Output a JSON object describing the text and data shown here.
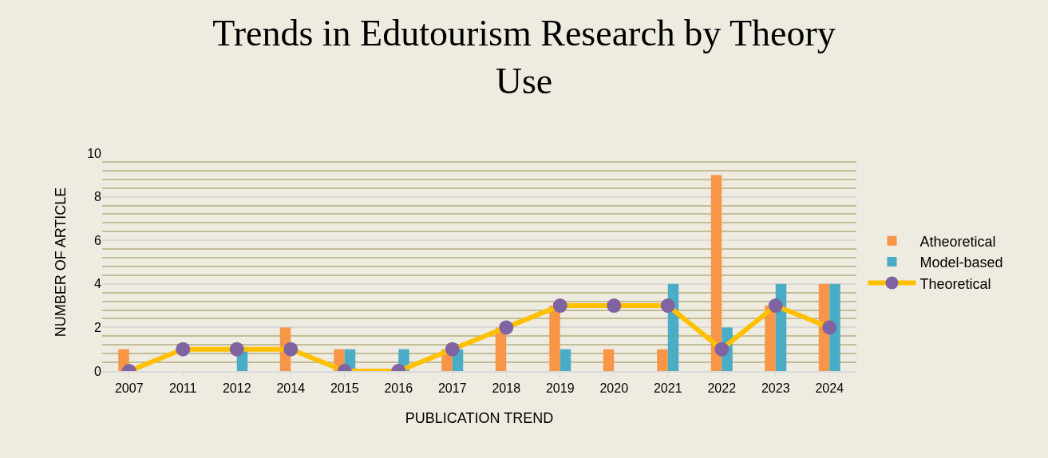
{
  "chart_data": {
    "type": "bar",
    "title": "Trends in Edutourism Research by Theory Use",
    "xlabel": "PUBLICATION TREND",
    "ylabel": "NUMBER OF ARTICLE",
    "categories": [
      "2007",
      "2011",
      "2012",
      "2014",
      "2015",
      "2016",
      "2017",
      "2018",
      "2019",
      "2020",
      "2021",
      "2022",
      "2023",
      "2024"
    ],
    "series": [
      {
        "name": "Atheoretical",
        "color": "#f79646",
        "values": [
          1,
          0,
          0,
          2,
          1,
          0,
          1,
          2,
          3,
          1,
          1,
          9,
          3,
          4
        ]
      },
      {
        "name": "Model-based",
        "color": "#4bacc6",
        "values": [
          0,
          0,
          1,
          0,
          1,
          1,
          1,
          0,
          1,
          0,
          4,
          2,
          4,
          4
        ]
      },
      {
        "name": "Theoretical",
        "type": "line",
        "color": "#ffc000",
        "colors": [
          "#8064a2",
          "#8064a2",
          "#8064a2",
          "#8064a2",
          "#8064a2",
          "#8064a2",
          "#8064a2",
          "#8064a2",
          "#8064a2",
          "#8064a2",
          "#8064a2",
          "#8064a2",
          "#8064a2",
          "#8064a2"
        ],
        "marker": "circle",
        "line_style": "solid",
        "values": [
          0,
          1,
          1,
          1,
          0,
          0,
          1,
          2,
          3,
          3,
          3,
          1,
          3,
          2
        ]
      }
    ],
    "ylim": [
      0,
      10
    ],
    "yticks": [
      0,
      {
        "value": 0.4,
        "label": null
      },
      {
        "value": 0.8,
        "label": null
      },
      {
        "value": 1.2,
        "label": null
      },
      {
        "value": 1.6,
        "label": null
      },
      2,
      {
        "value": 2.4,
        "label": null
      },
      {
        "value": 2.8,
        "label": null
      },
      {
        "value": 3.2,
        "label": null
      },
      {
        "value": 3.6,
        "label": null
      },
      4,
      {
        "value": 4.4,
        "label": null
      },
      {
        "value": 4.8,
        "label": null
      },
      {
        "value": 5.2,
        "label": null
      },
      {
        "value": 5.6,
        "label": null
      },
      6,
      {
        "value": 6.4,
        "label": null
      },
      {
        "value": 6.8,
        "label": null
      },
      {
        "value": 7.2,
        "label": null
      },
      {
        "value": 7.6,
        "label": null
      },
      8,
      {
        "value": 8.4,
        "label": null
      },
      {
        "value": 8.8,
        "label": null
      },
      {
        "value": 9.2,
        "label": null
      },
      {
        "value": 9.6,
        "label": null
      },
      10
    ],
    "grid": "y",
    "legend": "right"
  }
}
